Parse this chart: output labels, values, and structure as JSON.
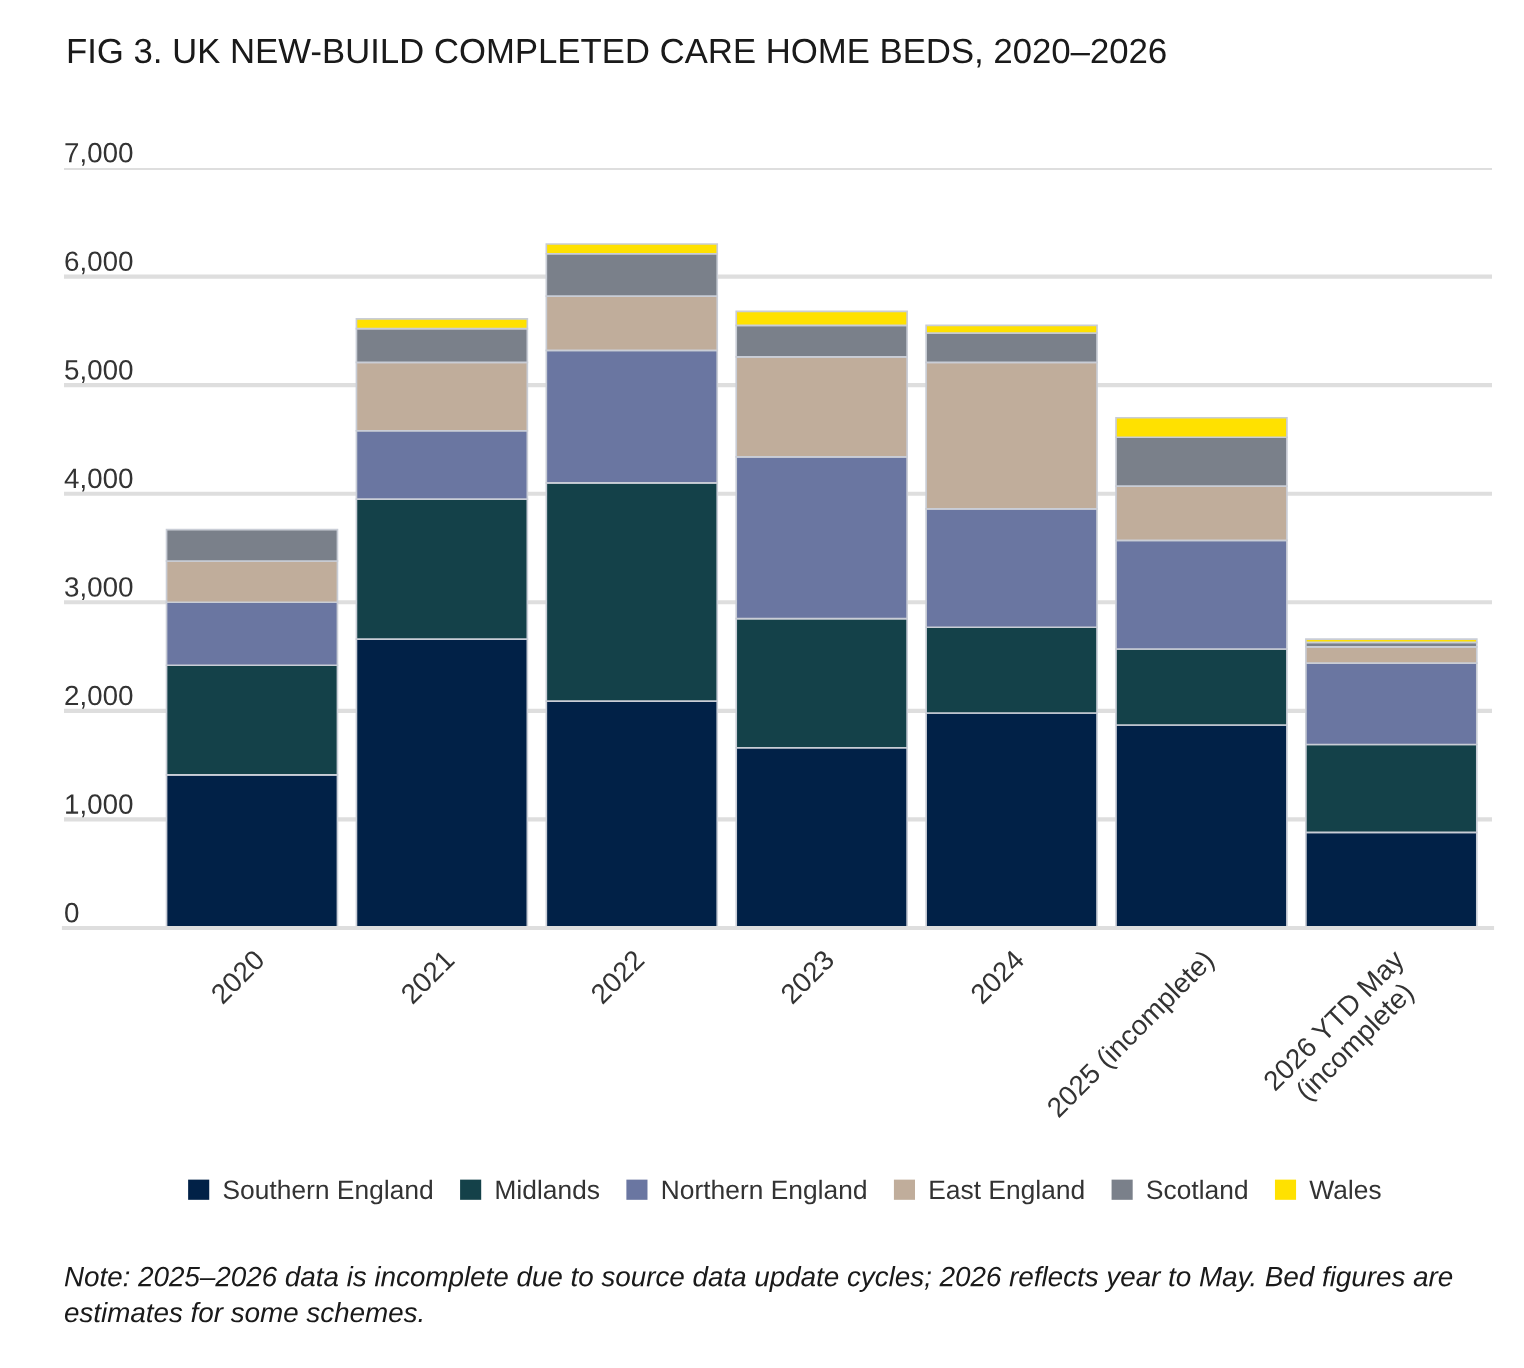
{
  "chart_data": {
    "type": "bar",
    "stacked": true,
    "title": "FIG 3. UK NEW-BUILD COMPLETED CARE HOME BEDS, 2020–2026",
    "categories": [
      "2020",
      "2021",
      "2022",
      "2023",
      "2024",
      "2025 (incomplete)",
      "2026 YTD May\n(incomplete)"
    ],
    "series": [
      {
        "name": "Southern England",
        "color": "#012147",
        "values": [
          1410,
          2660,
          2090,
          1660,
          1980,
          1870,
          880
        ]
      },
      {
        "name": "Midlands",
        "color": "#144149",
        "values": [
          1010,
          1290,
          2010,
          1190,
          790,
          700,
          810
        ]
      },
      {
        "name": "Northern England",
        "color": "#6a76a1",
        "values": [
          580,
          630,
          1220,
          1490,
          1090,
          1000,
          750
        ]
      },
      {
        "name": "East England",
        "color": "#c0ad9b",
        "values": [
          380,
          630,
          500,
          920,
          1350,
          500,
          150
        ]
      },
      {
        "name": "Scotland",
        "color": "#7a808a",
        "values": [
          290,
          310,
          390,
          290,
          270,
          450,
          40
        ]
      },
      {
        "name": "Wales",
        "color": "#ffe100",
        "values": [
          null,
          90,
          90,
          130,
          70,
          180,
          30
        ]
      }
    ],
    "ylim": [
      0,
      7000
    ],
    "yticks": [
      0,
      {
        "value": 1000,
        "label": "1,000"
      },
      {
        "value": 2000,
        "label": "2,000"
      },
      {
        "value": 3000,
        "label": "3,000"
      },
      {
        "value": 4000,
        "label": "4,000"
      },
      {
        "value": 5000,
        "label": "5,000"
      },
      {
        "value": 6000,
        "label": "6,000"
      },
      {
        "value": 7000,
        "label": "7,000"
      }
    ],
    "grid": "y",
    "legend": "bottom",
    "annotations": [
      "Note: 2025–2026 data is incomplete due to source data update cycles; 2026 reflects year to May. Bed figures are estimates for some schemes."
    ]
  }
}
